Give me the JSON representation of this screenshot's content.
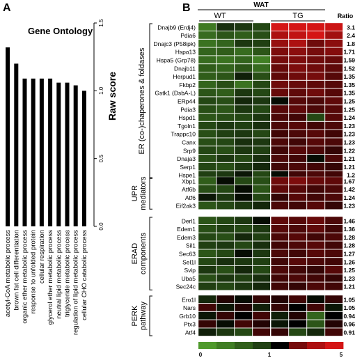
{
  "panel_a": {
    "letter": "A",
    "title": "Gene Ontology",
    "ylabel": "Raw score",
    "chart_data": {
      "type": "bar",
      "title": "Gene Ontology",
      "ylabel": "Raw score",
      "ylim": [
        0,
        1.5
      ],
      "yticks": [
        "0.0",
        "0.5",
        "1.0",
        "1.5"
      ],
      "categories": [
        "acetyl-CoA metabolic process",
        "brown fat cell differentiation",
        "organic ether metabolic process",
        "response to unfolded protein",
        "cellular respiration",
        "glycerol ether metabolic process",
        "neutral lipid metabolic process",
        "triglyceride metabolic process",
        "regulation of lipid metabolic process",
        "cellular CHO catabolic process"
      ],
      "values": [
        1.32,
        1.2,
        1.09,
        1.09,
        1.09,
        1.09,
        1.06,
        1.06,
        1.04,
        1.0
      ],
      "highlight_index": 3,
      "colors": {
        "bar": "#000000",
        "highlight_label": "#b0301e"
      }
    }
  },
  "panel_b": {
    "letter": "B",
    "title": "WAT",
    "groups": [
      "WT",
      "TG"
    ],
    "ratio_header": "Ratio",
    "scale": {
      "min": "0",
      "mid": "1",
      "max": "5"
    },
    "chart_data": {
      "type": "heatmap",
      "title": "WAT",
      "columns": [
        "WT",
        "WT",
        "WT",
        "WT",
        "TG",
        "TG",
        "TG",
        "TG"
      ],
      "scale_range": [
        0,
        5
      ],
      "colors": {
        "low": "#4f9a2c",
        "mid": "#000000",
        "high": "#d41515",
        "ratio_highlight": "#b0301e"
      },
      "sections": [
        {
          "name": "ER (co-)chaperones & foldases",
          "genes": [
            "Dnajb9 (Erdj4)",
            "Pdia6",
            "Dnajc3 (P58ipk)",
            "Hspa13",
            "Hspa5 (Grp78)",
            "Dnajb11",
            "Herpud1",
            "Fkbp2",
            "Gstk1 (DsbA-L)",
            "ERp44",
            "Pdia3",
            "Hspd1",
            "Tgoln1",
            "Trappc10",
            "Canx",
            "Srp9",
            "Dnaja3",
            "Serp1",
            "Hspe1"
          ],
          "ratios": [
            "3.1",
            "2.4",
            "1.8",
            "1.71",
            "1.59",
            "1.52",
            "1.35",
            "1.35",
            "1.35",
            "1.25",
            "1.25",
            "1.24",
            "1.23",
            "1.23",
            "1.23",
            "1.22",
            "1.21",
            "1.21",
            "1.2"
          ],
          "values": [
            [
              0.25,
              0.75,
              0.7,
              0.6,
              3.6,
              4.8,
              4.2,
              3.4
            ],
            [
              0.35,
              0.5,
              0.45,
              0.55,
              2.8,
              3.2,
              3.6,
              2.6
            ],
            [
              0.3,
              0.4,
              0.7,
              0.65,
              2.4,
              2.8,
              1.8,
              2.2
            ],
            [
              0.4,
              0.45,
              0.35,
              0.5,
              2.0,
              2.2,
              1.9,
              2.1
            ],
            [
              0.35,
              0.3,
              0.4,
              0.2,
              1.9,
              2.0,
              1.8,
              1.7
            ],
            [
              0.45,
              0.4,
              0.5,
              0.35,
              1.7,
              2.0,
              1.8,
              1.6
            ],
            [
              0.45,
              0.5,
              0.85,
              0.55,
              1.6,
              1.8,
              1.9,
              1.5
            ],
            [
              0.4,
              0.55,
              0.3,
              0.6,
              1.8,
              1.7,
              1.6,
              1.5
            ],
            [
              0.5,
              0.45,
              0.7,
              0.6,
              1.7,
              1.6,
              1.8,
              1.5
            ],
            [
              0.6,
              0.55,
              0.8,
              0.7,
              0.95,
              1.5,
              1.4,
              1.6
            ],
            [
              0.55,
              0.5,
              0.7,
              0.6,
              1.5,
              1.6,
              1.4,
              1.5
            ],
            [
              0.5,
              0.55,
              0.6,
              0.7,
              1.4,
              1.3,
              0.6,
              1.5
            ],
            [
              0.6,
              0.7,
              0.65,
              0.75,
              1.4,
              1.5,
              1.3,
              1.4
            ],
            [
              0.55,
              0.65,
              0.7,
              0.6,
              1.3,
              1.4,
              1.5,
              1.3
            ],
            [
              0.55,
              0.6,
              0.75,
              0.7,
              1.4,
              1.3,
              1.5,
              1.4
            ],
            [
              0.6,
              0.55,
              0.7,
              0.65,
              1.3,
              1.5,
              1.4,
              1.2
            ],
            [
              0.55,
              0.7,
              0.6,
              0.75,
              1.4,
              1.3,
              0.95,
              1.4
            ],
            [
              0.6,
              0.55,
              0.7,
              0.8,
              1.3,
              1.4,
              1.3,
              1.2
            ],
            [
              0.65,
              0.7,
              0.9,
              0.6,
              0.95,
              1.3,
              1.4,
              1.3
            ]
          ]
        },
        {
          "name": "UPR mediators",
          "genes": [
            "Xbp1",
            "Atf6b",
            "Atf6",
            "Eif2ak3"
          ],
          "ratios": [
            "1.67",
            "1.42",
            "1.24",
            "1.23"
          ],
          "values": [
            [
              0.45,
              0.95,
              0.6,
              0.55,
              1.8,
              2.0,
              1.7,
              1.6
            ],
            [
              0.55,
              0.6,
              0.95,
              0.5,
              1.6,
              1.5,
              1.3,
              1.4
            ],
            [
              0.9,
              0.7,
              0.95,
              0.6,
              1.2,
              1.5,
              1.3,
              1.4
            ],
            [
              0.5,
              0.6,
              0.7,
              0.8,
              1.4,
              1.3,
              1.5,
              1.2
            ]
          ]
        },
        {
          "name": "ERAD components",
          "genes": [
            "Derl1",
            "Edem1",
            "Edem3",
            "Sil1",
            "Sec63",
            "Sel1l",
            "Svip",
            "Uba5",
            "Sec24c"
          ],
          "ratios": [
            "1.46",
            "1.36",
            "1.28",
            "1.28",
            "1.27",
            "1.26",
            "1.25",
            "1.23",
            "1.21"
          ],
          "values": [
            [
              0.5,
              0.6,
              0.7,
              0.95,
              1.6,
              1.5,
              1.7,
              1.4
            ],
            [
              0.55,
              0.65,
              0.6,
              0.7,
              1.5,
              1.4,
              1.6,
              1.3
            ],
            [
              0.6,
              0.55,
              0.8,
              0.65,
              1.4,
              1.5,
              1.3,
              1.4
            ],
            [
              0.65,
              0.7,
              0.6,
              0.75,
              1.3,
              1.4,
              1.5,
              1.3
            ],
            [
              0.5,
              0.6,
              0.95,
              0.7,
              1.4,
              1.3,
              1.5,
              1.4
            ],
            [
              0.6,
              0.75,
              0.7,
              0.65,
              1.3,
              1.5,
              1.4,
              1.3
            ],
            [
              0.7,
              0.55,
              0.8,
              0.6,
              1.4,
              1.3,
              1.2,
              1.5
            ],
            [
              0.55,
              0.7,
              0.65,
              0.75,
              1.3,
              1.4,
              1.3,
              1.2
            ],
            [
              0.65,
              0.6,
              0.7,
              0.8,
              1.3,
              1.2,
              1.4,
              1.3
            ]
          ]
        },
        {
          "name": "PERK pathway",
          "genes": [
            "Ero1l",
            "Nars",
            "Grb10",
            "Ptx3",
            "Atf4"
          ],
          "ratios": [
            "1.05",
            "1.05",
            "0.94",
            "0.96",
            "0.91"
          ],
          "ratio_highlight": [
            true,
            true,
            false,
            true,
            false
          ],
          "values": [
            [
              0.8,
              1.1,
              0.95,
              1.2,
              1.1,
              1.3,
              0.95,
              1.2
            ],
            [
              1.3,
              0.9,
              1.1,
              0.85,
              1.2,
              1.0,
              1.3,
              0.9
            ],
            [
              0.9,
              1.2,
              1.0,
              1.3,
              0.85,
              1.1,
              0.4,
              1.0
            ],
            [
              1.2,
              0.95,
              1.3,
              1.1,
              0.9,
              1.0,
              0.5,
              1.1
            ],
            [
              0.85,
              0.7,
              0.6,
              1.3,
              1.2,
              0.6,
              0.8,
              1.3
            ]
          ]
        }
      ]
    }
  }
}
